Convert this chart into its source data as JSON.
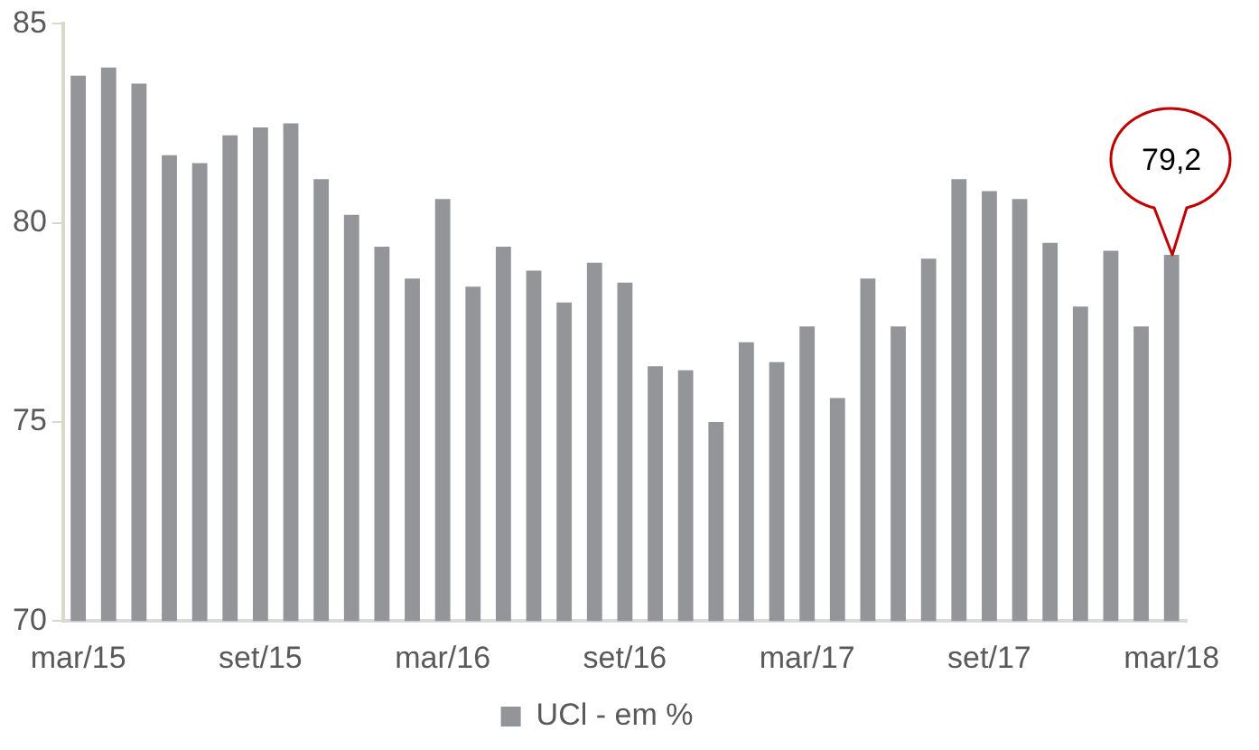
{
  "chart_data": {
    "type": "bar",
    "categories": [
      "mar/15",
      null,
      null,
      null,
      null,
      null,
      "set/15",
      null,
      null,
      null,
      null,
      null,
      "mar/16",
      null,
      null,
      null,
      null,
      null,
      "set/16",
      null,
      null,
      null,
      null,
      null,
      "mar/17",
      null,
      null,
      null,
      null,
      null,
      "set/17",
      null,
      null,
      null,
      null,
      null,
      "mar/18"
    ],
    "series": [
      {
        "name": "UCl - em %",
        "color": "#939598",
        "values": [
          83.7,
          83.9,
          83.5,
          81.7,
          81.5,
          82.2,
          82.4,
          82.5,
          81.1,
          80.2,
          79.4,
          78.6,
          80.6,
          78.4,
          79.4,
          78.8,
          78.0,
          79.0,
          78.5,
          76.4,
          76.3,
          75.0,
          77.0,
          76.5,
          77.4,
          75.6,
          78.6,
          77.4,
          79.1,
          81.1,
          80.8,
          80.6,
          79.5,
          77.9,
          79.3,
          77.4,
          79.2
        ],
        "value_labels": [
          null,
          null,
          null,
          null,
          null,
          null,
          null,
          null,
          null,
          null,
          null,
          null,
          null,
          null,
          null,
          null,
          null,
          null,
          null,
          null,
          null,
          null,
          null,
          null,
          null,
          null,
          null,
          null,
          null,
          null,
          null,
          null,
          null,
          null,
          null,
          null,
          "79,2"
        ]
      }
    ],
    "ylim": [
      70,
      85
    ],
    "yticks": [
      70,
      75,
      80,
      85
    ],
    "grid": false,
    "legend": "bottom"
  }
}
